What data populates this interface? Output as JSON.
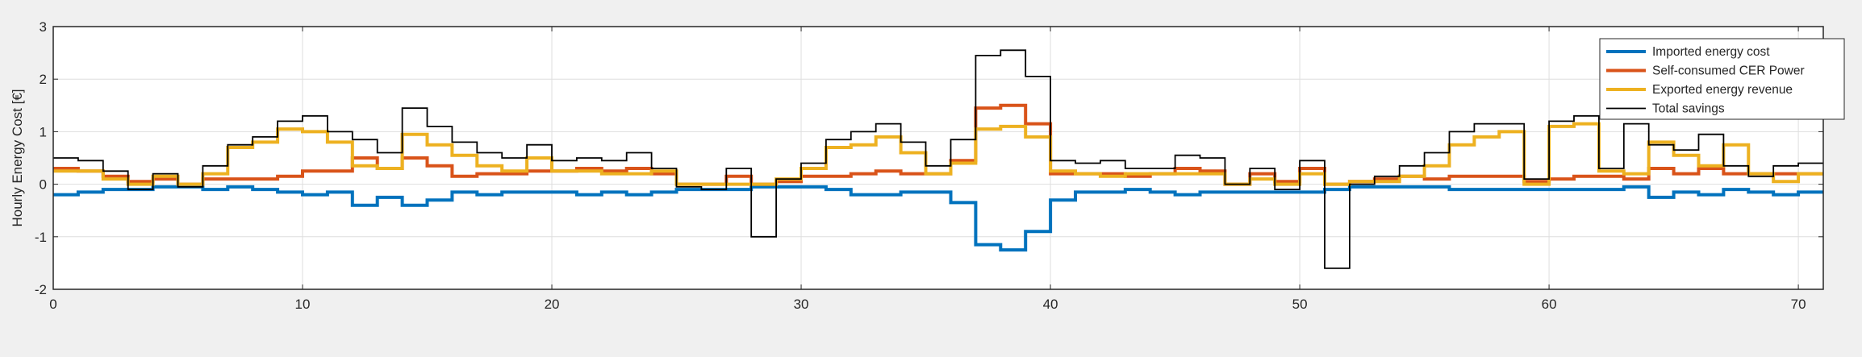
{
  "chart_data": {
    "type": "line",
    "step": true,
    "title": "",
    "xlabel": "",
    "ylabel": "Hourly Energy Cost [€]",
    "xlim": [
      0,
      71
    ],
    "ylim": [
      -2,
      3
    ],
    "xticks": [
      0,
      10,
      20,
      30,
      40,
      50,
      60,
      70
    ],
    "yticks": [
      -2,
      -1,
      0,
      1,
      2,
      3
    ],
    "grid": true,
    "legend_position": "top-right",
    "series": [
      {
        "name": "Imported energy cost",
        "color": "#0072BD",
        "values": [
          -0.2,
          -0.15,
          -0.1,
          -0.1,
          -0.05,
          -0.05,
          -0.1,
          -0.05,
          -0.1,
          -0.15,
          -0.2,
          -0.15,
          -0.4,
          -0.25,
          -0.4,
          -0.3,
          -0.15,
          -0.2,
          -0.15,
          -0.15,
          -0.15,
          -0.2,
          -0.15,
          -0.2,
          -0.15,
          -0.1,
          -0.1,
          -0.1,
          -0.05,
          -0.05,
          -0.05,
          -0.1,
          -0.2,
          -0.2,
          -0.15,
          -0.15,
          -0.35,
          -1.15,
          -1.25,
          -0.9,
          -0.3,
          -0.15,
          -0.15,
          -0.1,
          -0.15,
          -0.2,
          -0.15,
          -0.15,
          -0.15,
          -0.15,
          -0.15,
          -0.1,
          -0.05,
          -0.05,
          -0.05,
          -0.05,
          -0.1,
          -0.1,
          -0.1,
          -0.1,
          -0.1,
          -0.1,
          -0.1,
          -0.05,
          -0.25,
          -0.15,
          -0.2,
          -0.1,
          -0.15,
          -0.2,
          -0.15,
          -0.15
        ]
      },
      {
        "name": "Self-consumed CER Power",
        "color": "#D95319",
        "values": [
          0.3,
          0.25,
          0.15,
          0.05,
          0.1,
          0.0,
          0.1,
          0.1,
          0.1,
          0.15,
          0.25,
          0.25,
          0.5,
          0.3,
          0.5,
          0.35,
          0.15,
          0.2,
          0.2,
          0.25,
          0.25,
          0.3,
          0.25,
          0.3,
          0.2,
          0.0,
          0.0,
          0.15,
          0.0,
          0.05,
          0.15,
          0.15,
          0.2,
          0.25,
          0.2,
          0.2,
          0.45,
          1.45,
          1.5,
          1.15,
          0.2,
          0.2,
          0.2,
          0.15,
          0.2,
          0.3,
          0.25,
          0.0,
          0.2,
          0.05,
          0.3,
          0.0,
          0.05,
          0.1,
          0.15,
          0.1,
          0.15,
          0.15,
          0.15,
          0.05,
          0.1,
          0.15,
          0.15,
          0.1,
          0.3,
          0.2,
          0.3,
          0.2,
          0.2,
          0.2,
          0.2,
          0.2
        ]
      },
      {
        "name": "Exported energy revenue",
        "color": "#EDB120",
        "values": [
          0.25,
          0.25,
          0.1,
          0.0,
          0.15,
          0.0,
          0.2,
          0.7,
          0.8,
          1.05,
          1.0,
          0.8,
          0.35,
          0.3,
          0.95,
          0.75,
          0.55,
          0.35,
          0.25,
          0.5,
          0.25,
          0.25,
          0.2,
          0.2,
          0.25,
          0.0,
          0.0,
          0.0,
          0.0,
          0.1,
          0.3,
          0.7,
          0.75,
          0.9,
          0.6,
          0.2,
          0.4,
          1.05,
          1.1,
          0.9,
          0.25,
          0.2,
          0.15,
          0.2,
          0.2,
          0.2,
          0.2,
          0.0,
          0.1,
          0.0,
          0.2,
          0.0,
          0.05,
          0.05,
          0.15,
          0.35,
          0.75,
          0.9,
          1.0,
          0.0,
          1.1,
          1.15,
          0.25,
          0.2,
          0.8,
          0.55,
          0.35,
          0.75,
          0.2,
          0.05,
          0.2,
          0.2
        ]
      },
      {
        "name": "Total savings",
        "color": "#000000",
        "values": [
          0.5,
          0.45,
          0.25,
          -0.1,
          0.2,
          -0.05,
          0.35,
          0.75,
          0.9,
          1.2,
          1.3,
          1.0,
          0.85,
          0.6,
          1.45,
          1.1,
          0.8,
          0.6,
          0.5,
          0.75,
          0.45,
          0.5,
          0.45,
          0.6,
          0.3,
          -0.05,
          -0.1,
          0.3,
          -1.0,
          0.1,
          0.4,
          0.85,
          1.0,
          1.15,
          0.8,
          0.35,
          0.85,
          2.45,
          2.55,
          2.05,
          0.45,
          0.4,
          0.45,
          0.3,
          0.3,
          0.55,
          0.5,
          0.0,
          0.3,
          -0.1,
          0.45,
          -1.6,
          0.0,
          0.15,
          0.35,
          0.6,
          1.0,
          1.15,
          1.15,
          0.1,
          1.2,
          1.3,
          0.3,
          1.15,
          0.75,
          0.65,
          0.95,
          0.35,
          0.15,
          0.35,
          0.4,
          0.4
        ]
      }
    ]
  }
}
